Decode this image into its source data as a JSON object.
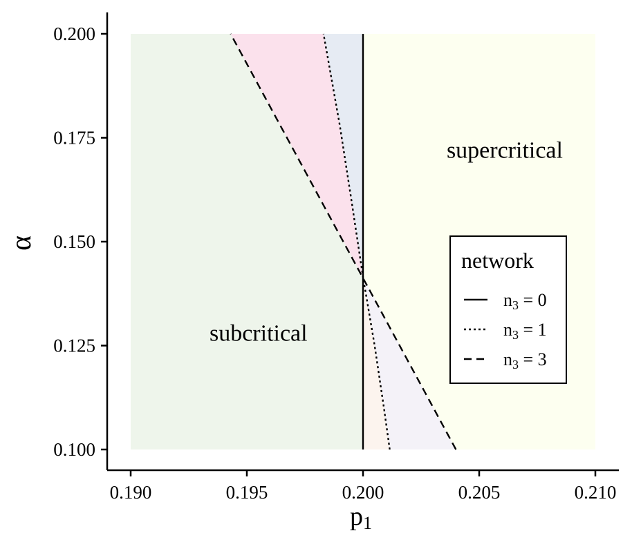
{
  "chart_data": {
    "type": "line",
    "xlabel": "p",
    "xlabel_sub": "1",
    "ylabel": "α",
    "xlim": [
      0.19,
      0.21
    ],
    "ylim": [
      0.1,
      0.2
    ],
    "x_ticks": [
      0.19,
      0.195,
      0.2,
      0.205,
      0.21
    ],
    "x_tick_labels": [
      "0.190",
      "0.195",
      "0.200",
      "0.205",
      "0.210"
    ],
    "y_ticks": [
      0.1,
      0.125,
      0.15,
      0.175,
      0.2
    ],
    "y_tick_labels": [
      "0.100",
      "0.125",
      "0.150",
      "0.175",
      "0.200"
    ],
    "grid": false,
    "region_labels": [
      {
        "text": "subcritical",
        "x": 0.1955,
        "y": 0.128
      },
      {
        "text": "supercritical",
        "x": 0.2061,
        "y": 0.172
      }
    ],
    "legend": {
      "title": "network",
      "placement": "right",
      "entries": [
        {
          "label_main": "n",
          "label_sub": "3",
          "label_rest": " = 0",
          "dash": "solid"
        },
        {
          "label_main": "n",
          "label_sub": "3",
          "label_rest": " = 1",
          "dash": "dotted"
        },
        {
          "label_main": "n",
          "label_sub": "3",
          "label_rest": " = 3",
          "dash": "dashed"
        }
      ]
    },
    "series": [
      {
        "name": "n3 = 0",
        "dash": "solid",
        "points": [
          [
            0.2,
            0.1
          ],
          [
            0.2,
            0.2
          ]
        ]
      },
      {
        "name": "n3 = 1",
        "dash": "dotted",
        "points": [
          [
            0.20115,
            0.1
          ],
          [
            0.2009,
            0.11
          ],
          [
            0.2005,
            0.125
          ],
          [
            0.2,
            0.1415
          ],
          [
            0.1995,
            0.16
          ],
          [
            0.199,
            0.178
          ],
          [
            0.1983,
            0.2
          ]
        ]
      },
      {
        "name": "n3 = 3",
        "dash": "dashed",
        "points": [
          [
            0.204,
            0.1
          ],
          [
            0.1943,
            0.2
          ]
        ]
      }
    ],
    "regions": [
      {
        "name": "subcritical",
        "color": "#eef5eb",
        "points": [
          [
            0.19,
            0.1
          ],
          [
            0.2,
            0.1
          ],
          [
            0.2,
            0.2
          ],
          [
            0.19,
            0.2
          ]
        ]
      },
      {
        "name": "supercritical",
        "color": "#fdfff0",
        "points": [
          [
            0.2,
            0.1
          ],
          [
            0.21,
            0.1
          ],
          [
            0.21,
            0.2
          ],
          [
            0.2,
            0.2
          ]
        ]
      },
      {
        "name": "n3=3 band above",
        "color": "#fbe1ec",
        "points": [
          [
            0.1943,
            0.2
          ],
          [
            0.2,
            0.1415
          ],
          [
            0.1995,
            0.16
          ],
          [
            0.199,
            0.178
          ],
          [
            0.1983,
            0.2
          ]
        ]
      },
      {
        "name": "n3=1 band above",
        "color": "#e6ebf3",
        "points": [
          [
            0.1983,
            0.2
          ],
          [
            0.199,
            0.178
          ],
          [
            0.1995,
            0.16
          ],
          [
            0.2,
            0.1415
          ],
          [
            0.2,
            0.2
          ]
        ]
      },
      {
        "name": "n3=1 band below",
        "color": "#fcf4ee",
        "points": [
          [
            0.2,
            0.1415
          ],
          [
            0.2005,
            0.125
          ],
          [
            0.2009,
            0.11
          ],
          [
            0.20115,
            0.1
          ],
          [
            0.2,
            0.1
          ]
        ]
      },
      {
        "name": "n3=3 band below",
        "color": "#f4f2f8",
        "points": [
          [
            0.2,
            0.1415
          ],
          [
            0.204,
            0.1
          ],
          [
            0.20115,
            0.1
          ],
          [
            0.2009,
            0.11
          ],
          [
            0.2005,
            0.125
          ]
        ]
      }
    ]
  }
}
